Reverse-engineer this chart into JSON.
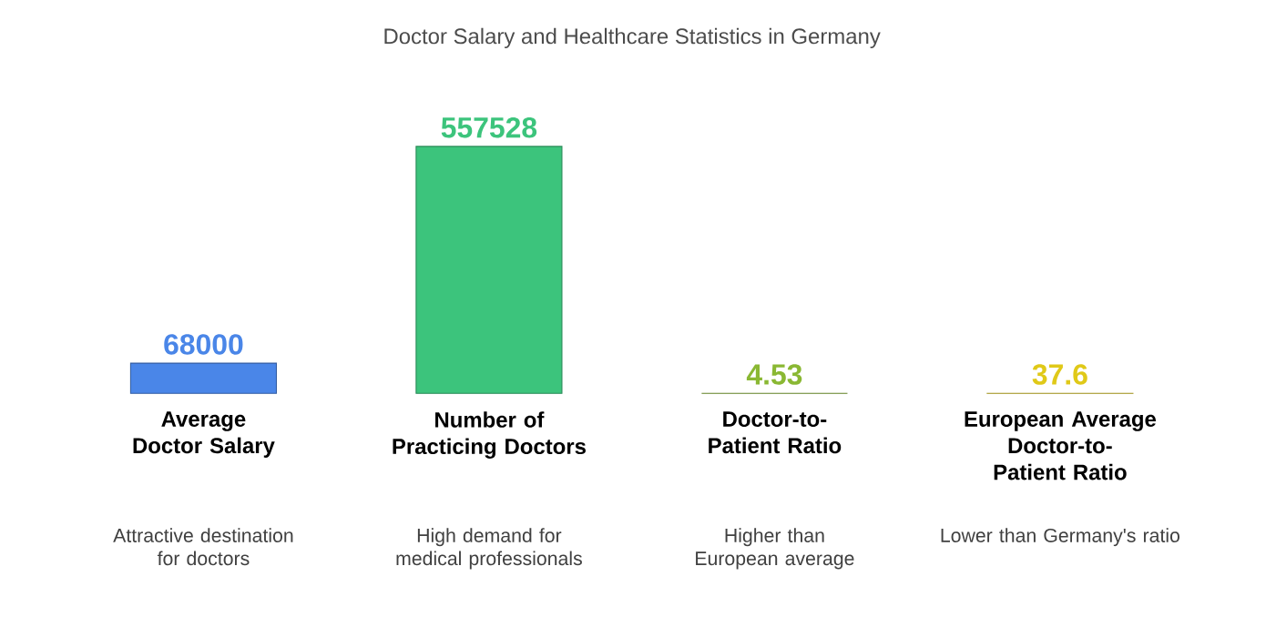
{
  "chart_data": {
    "type": "bar",
    "title": "Doctor Salary and Healthcare Statistics in Germany",
    "categories": [
      "Average Doctor Salary",
      "Number of Practicing Doctors",
      "Doctor-to-Patient Ratio",
      "European Average Doctor-to-Patient Ratio"
    ],
    "values": [
      68000,
      557528,
      4.53,
      37.6
    ],
    "colors": [
      "#4a86e8",
      "#3cc47c",
      "#8ab833",
      "#e0c918"
    ],
    "data_labels": true,
    "annotations": [
      "Attractive destination for doctors",
      "High demand for medical professionals",
      "Higher than European average",
      "Lower than Germany's ratio"
    ]
  }
}
